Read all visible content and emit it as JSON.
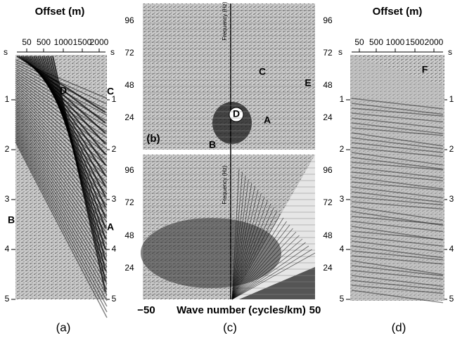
{
  "panel_a": {
    "title": "Offset (m)",
    "x_ticks": [
      "50",
      "500",
      "1000",
      "1500",
      "2000"
    ],
    "unit_left": "s",
    "unit_right": "s",
    "y_ticks": [
      "1",
      "2",
      "3",
      "4",
      "5"
    ],
    "annotations": [
      "D",
      "C",
      "B",
      "A"
    ],
    "caption": "(a)"
  },
  "panel_c": {
    "top": {
      "y_ticks": [
        "96",
        "72",
        "48",
        "24"
      ],
      "axis_label": "Frequency (Hz)",
      "annotations": [
        "C",
        "E",
        "D",
        "A",
        "B"
      ],
      "label": "(b)"
    },
    "bottom": {
      "y_ticks": [
        "96",
        "72",
        "48",
        "24"
      ],
      "axis_label": "Frequency (Hz)"
    },
    "x_ticks": [
      "−50",
      "50"
    ],
    "x_label": "Wave number (cycles/km)",
    "caption": "(c)"
  },
  "panel_d": {
    "title": "Offset (m)",
    "x_ticks": [
      "50",
      "500",
      "1000",
      "1500",
      "2000"
    ],
    "unit_left": "s",
    "unit_right": "s",
    "y_ticks": [
      "1",
      "2",
      "3",
      "4",
      "5"
    ],
    "annotations": [
      "F"
    ],
    "caption": "(d)"
  }
}
